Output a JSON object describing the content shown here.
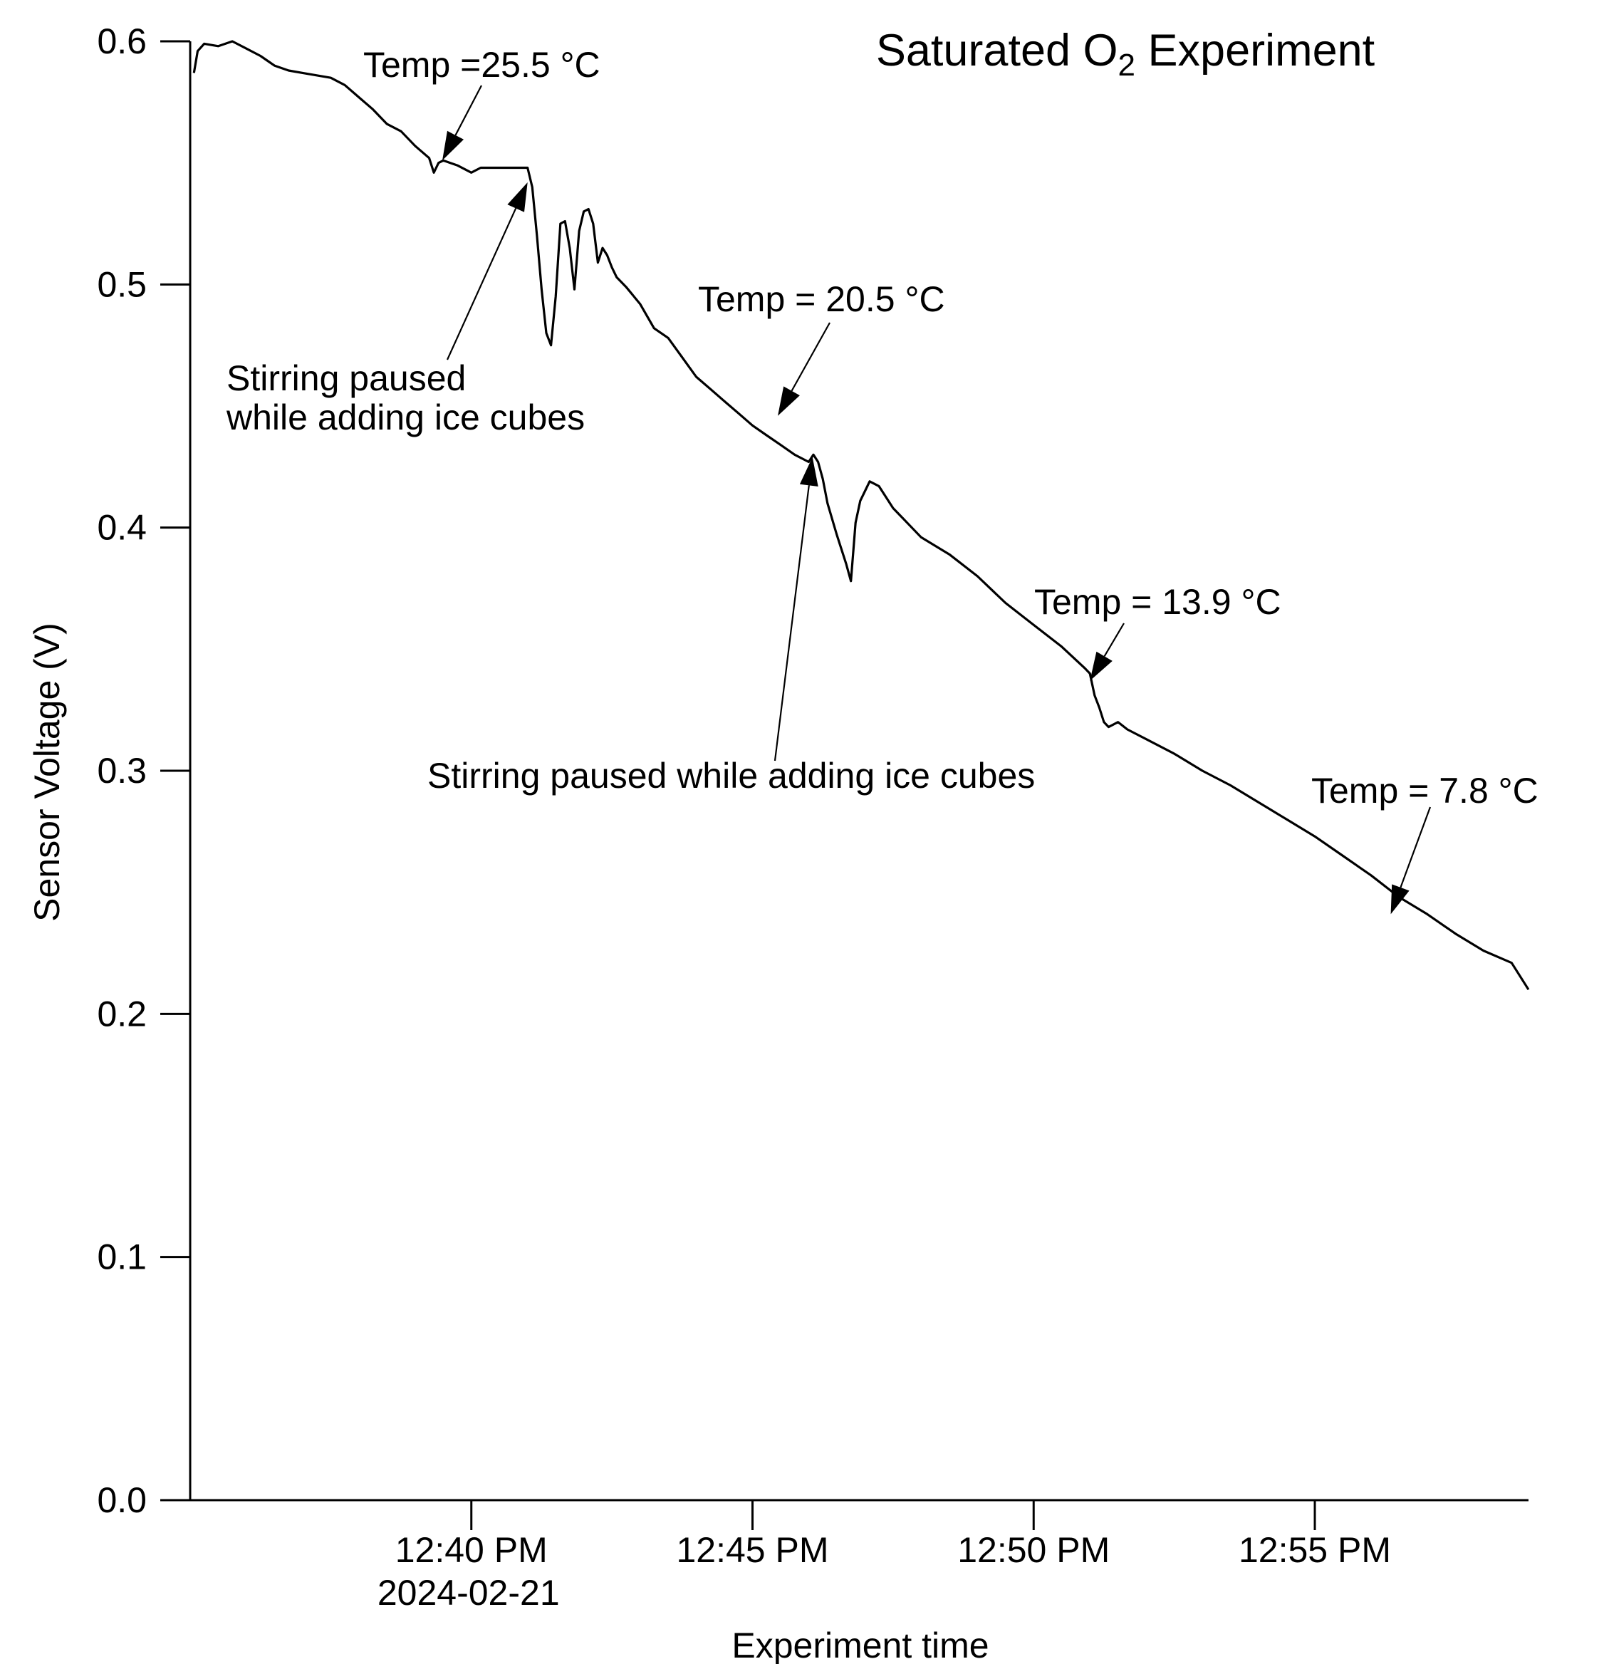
{
  "chart_data": {
    "type": "line",
    "title_main": "Saturated O",
    "title_sub": "2",
    "title_rest": " Experiment",
    "xlabel": "Experiment time",
    "ylabel": "Sensor Voltage (V)",
    "ylim": [
      0,
      0.6
    ],
    "xlim": [
      "12:35:00",
      "12:58:48"
    ],
    "grid": false,
    "x_ticks": [
      {
        "t": "12:40:00",
        "label": "12:40 PM",
        "sublabel": "2024-02-21"
      },
      {
        "t": "12:45:00",
        "label": "12:45 PM",
        "sublabel": ""
      },
      {
        "t": "12:50:00",
        "label": "12:50 PM",
        "sublabel": ""
      },
      {
        "t": "12:55:00",
        "label": "12:55 PM",
        "sublabel": ""
      }
    ],
    "y_ticks": [
      {
        "v": 0.0,
        "label": "0.0"
      },
      {
        "v": 0.1,
        "label": "0.1"
      },
      {
        "v": 0.2,
        "label": "0.2"
      },
      {
        "v": 0.3,
        "label": "0.3"
      },
      {
        "v": 0.4,
        "label": "0.4"
      },
      {
        "v": 0.5,
        "label": "0.5"
      },
      {
        "v": 0.6,
        "label": "0.6"
      }
    ],
    "series": [
      {
        "x": [
          "12:35:04",
          "12:35:08",
          "12:35:15",
          "12:35:30",
          "12:35:45",
          "12:36:00",
          "12:36:15",
          "12:36:30",
          "12:36:45",
          "12:37:00",
          "12:37:15",
          "12:37:30",
          "12:37:45",
          "12:38:00",
          "12:38:15",
          "12:38:30",
          "12:38:45",
          "12:39:00",
          "12:39:15",
          "12:39:20",
          "12:39:25",
          "12:39:30",
          "12:39:45",
          "12:40:00",
          "12:40:10",
          "12:40:15",
          "12:40:30",
          "12:40:45",
          "12:41:00",
          "12:41:05",
          "12:41:10",
          "12:41:15",
          "12:41:20",
          "12:41:25",
          "12:41:30",
          "12:41:35",
          "12:41:40",
          "12:41:45",
          "12:41:50",
          "12:41:55",
          "12:42:00",
          "12:42:05",
          "12:42:10",
          "12:42:15",
          "12:42:20",
          "12:42:25",
          "12:42:30",
          "12:42:35",
          "12:42:45",
          "12:43:00",
          "12:43:15",
          "12:43:30",
          "12:43:45",
          "12:44:00",
          "12:44:15",
          "12:44:30",
          "12:44:45",
          "12:45:00",
          "12:45:15",
          "12:45:30",
          "12:45:45",
          "12:46:00",
          "12:46:05",
          "12:46:10",
          "12:46:15",
          "12:46:20",
          "12:46:30",
          "12:46:40",
          "12:46:45",
          "12:46:50",
          "12:46:55",
          "12:47:00",
          "12:47:05",
          "12:47:10",
          "12:47:15",
          "12:47:20",
          "12:47:30",
          "12:47:45",
          "12:48:00",
          "12:48:30",
          "12:49:00",
          "12:49:30",
          "12:50:00",
          "12:50:30",
          "12:50:55",
          "12:51:00",
          "12:51:05",
          "12:51:10",
          "12:51:15",
          "12:51:20",
          "12:51:30",
          "12:51:40",
          "12:52:00",
          "12:52:30",
          "12:53:00",
          "12:53:30",
          "12:54:00",
          "12:54:30",
          "12:55:00",
          "12:55:30",
          "12:56:00",
          "12:56:30",
          "12:57:00",
          "12:57:30",
          "12:58:00",
          "12:58:30",
          "12:58:48"
        ],
        "values": [
          0.587,
          0.596,
          0.599,
          0.598,
          0.6,
          0.597,
          0.594,
          0.59,
          0.588,
          0.587,
          0.586,
          0.585,
          0.582,
          0.577,
          0.572,
          0.566,
          0.563,
          0.557,
          0.552,
          0.546,
          0.55,
          0.551,
          0.549,
          0.546,
          0.548,
          0.548,
          0.548,
          0.548,
          0.548,
          0.54,
          0.52,
          0.498,
          0.48,
          0.475,
          0.495,
          0.525,
          0.526,
          0.515,
          0.498,
          0.522,
          0.53,
          0.531,
          0.525,
          0.509,
          0.515,
          0.512,
          0.507,
          0.503,
          0.499,
          0.492,
          0.482,
          0.478,
          0.47,
          0.462,
          0.457,
          0.452,
          0.447,
          0.442,
          0.438,
          0.434,
          0.43,
          0.427,
          0.43,
          0.427,
          0.42,
          0.41,
          0.397,
          0.385,
          0.378,
          0.402,
          0.411,
          0.415,
          0.419,
          0.418,
          0.417,
          0.414,
          0.408,
          0.402,
          0.396,
          0.389,
          0.38,
          0.369,
          0.36,
          0.351,
          0.342,
          0.34,
          0.331,
          0.326,
          0.32,
          0.318,
          0.32,
          0.317,
          0.313,
          0.307,
          0.3,
          0.294,
          0.287,
          0.28,
          0.273,
          0.265,
          0.257,
          0.248,
          0.241,
          0.233,
          0.226,
          0.221,
          0.21
        ]
      }
    ],
    "annotations": [
      {
        "lines": [
          "Temp =25.5 °C"
        ],
        "t": "12:39:29",
        "v": 0.551
      },
      {
        "lines": [
          "Stirring paused",
          "while adding ice cubes"
        ],
        "t": "12:41:00",
        "v": 0.542
      },
      {
        "lines": [
          "Temp = 20.5 °C"
        ],
        "t": "12:45:27",
        "v": 0.446
      },
      {
        "lines": [
          "Stirring paused while adding ice cubes"
        ],
        "t": "12:46:04",
        "v": 0.429
      },
      {
        "lines": [
          "Temp = 13.9 °C"
        ],
        "t": "12:51:00",
        "v": 0.337
      },
      {
        "lines": [
          "Temp = 7.8 °C"
        ],
        "t": "12:56:21",
        "v": 0.241
      }
    ]
  }
}
